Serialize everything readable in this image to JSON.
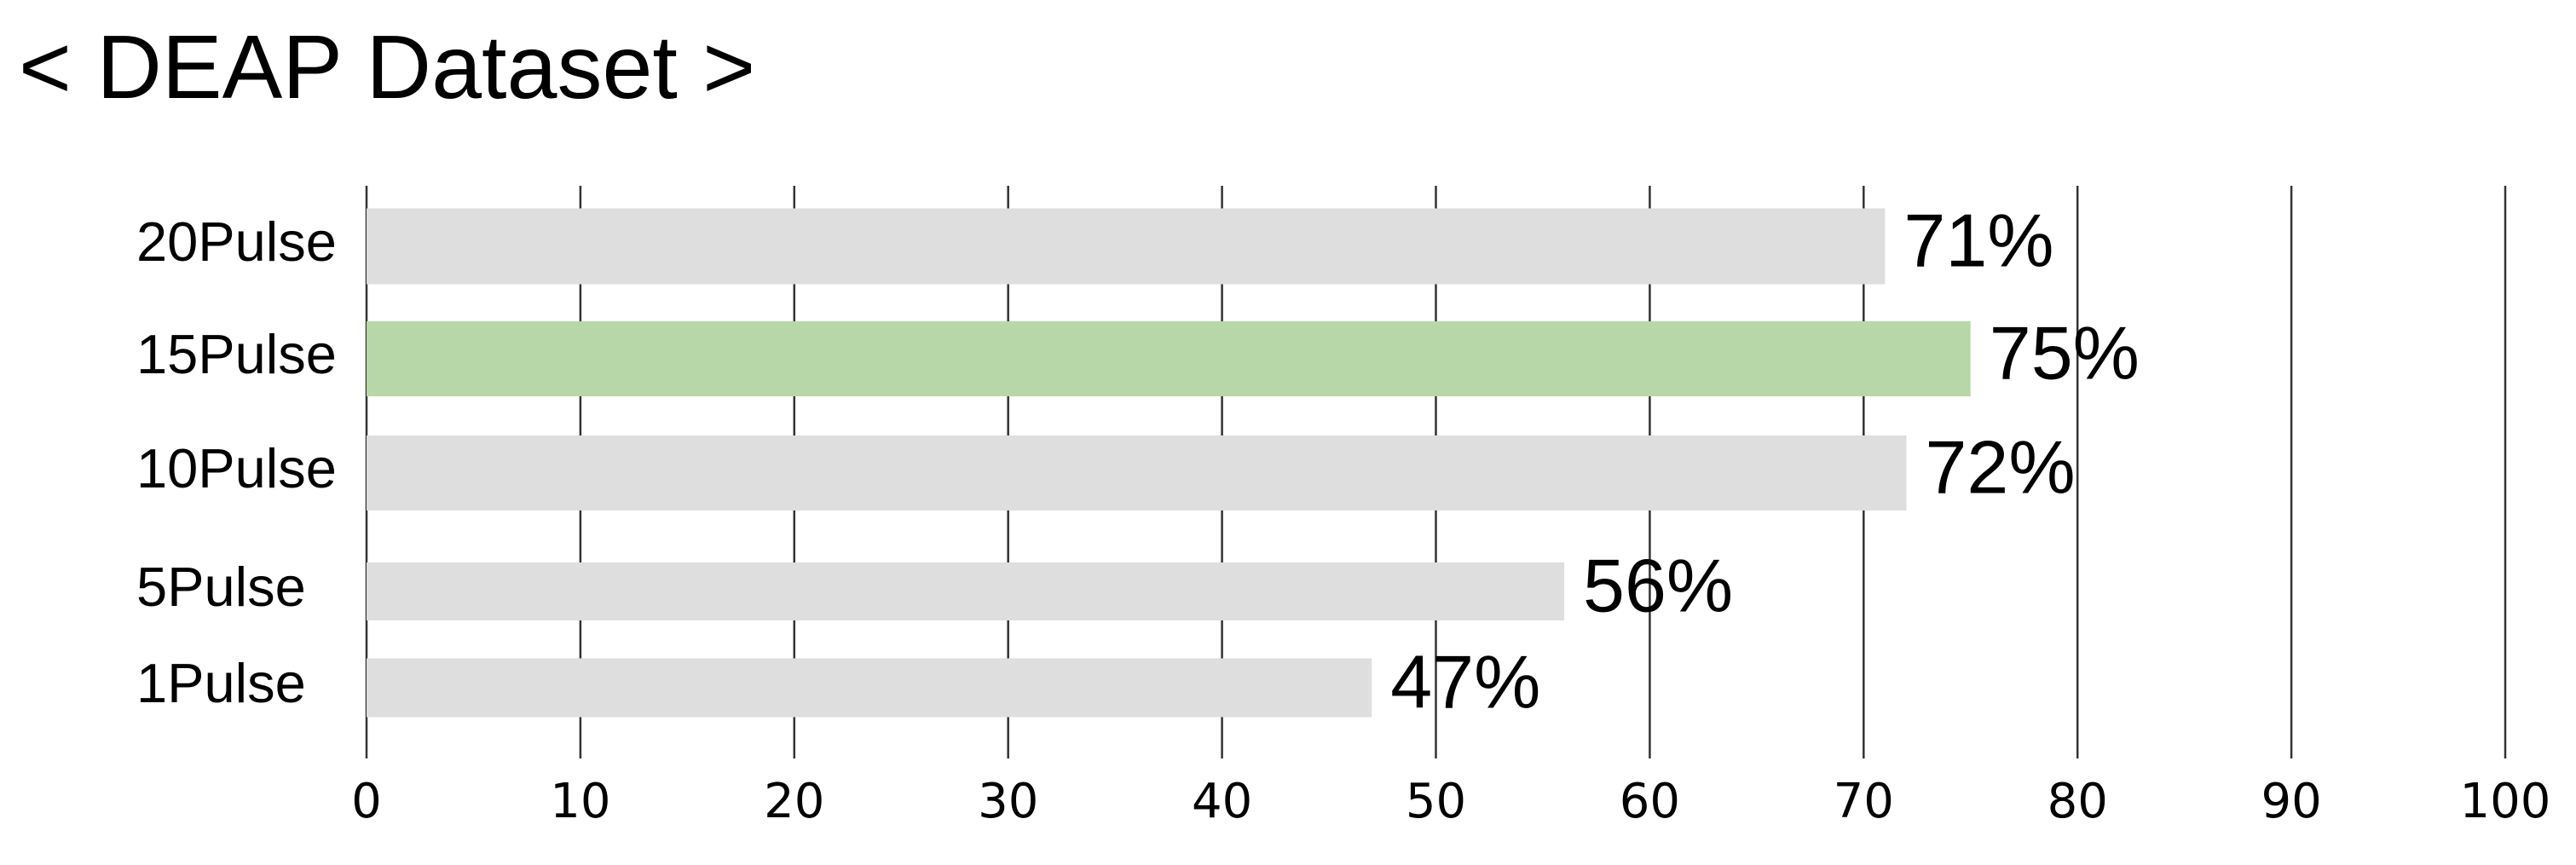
{
  "chart_data": {
    "type": "bar",
    "orientation": "horizontal",
    "title": "< DEAP Dataset >",
    "categories": [
      "20Pulse",
      "15Pulse",
      "10Pulse",
      "5Pulse",
      "1Pulse"
    ],
    "values": [
      71,
      75,
      72,
      56,
      47
    ],
    "value_labels": [
      "71%",
      "75%",
      "72%",
      "56%",
      "47%"
    ],
    "colors": [
      "#dedede",
      "#b8d7a8",
      "#dedede",
      "#dedede",
      "#dedede"
    ],
    "xlim": [
      0,
      100
    ],
    "xticks": [
      0,
      10,
      20,
      30,
      40,
      50,
      60,
      70,
      80,
      90,
      100
    ],
    "grid": true
  }
}
